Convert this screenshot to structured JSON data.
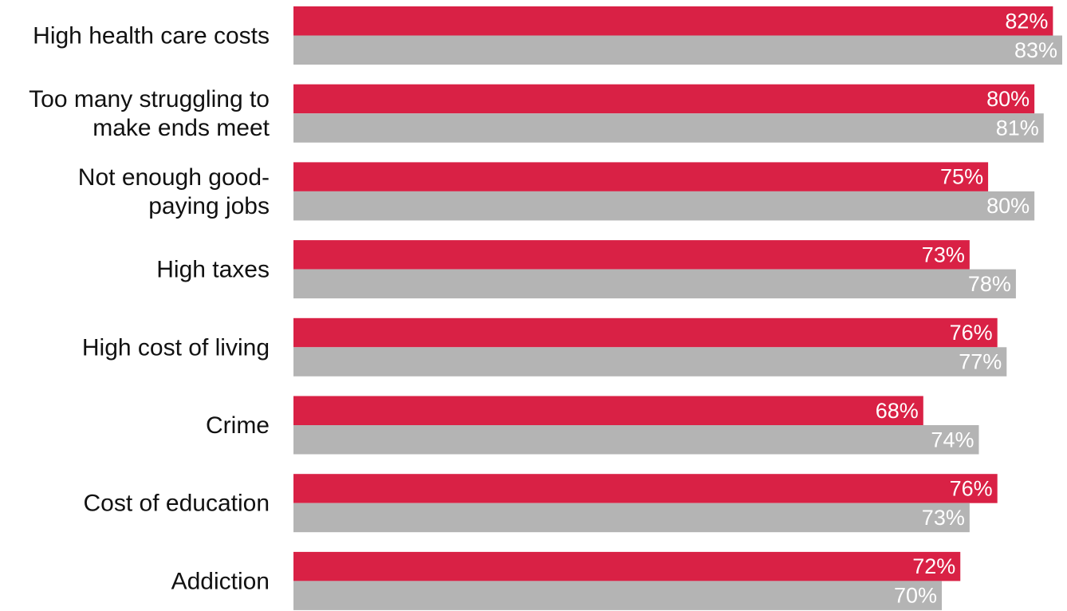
{
  "chart_data": {
    "type": "bar",
    "orientation": "horizontal",
    "categories": [
      [
        "High health care costs"
      ],
      [
        "Too many struggling to",
        "make ends meet"
      ],
      [
        "Not enough good-",
        "paying jobs"
      ],
      [
        "High taxes"
      ],
      [
        "High cost of living"
      ],
      [
        "Crime"
      ],
      [
        "Cost of education"
      ],
      [
        "Addiction"
      ]
    ],
    "series": [
      {
        "color": "#d92145",
        "values": [
          82,
          80,
          75,
          73,
          76,
          68,
          76,
          72
        ],
        "labels": [
          "82%",
          "80%",
          "75%",
          "73%",
          "76%",
          "68%",
          "76%",
          "72%"
        ]
      },
      {
        "color": "#b4b4b4",
        "values": [
          83,
          81,
          80,
          78,
          77,
          74,
          73,
          70
        ],
        "labels": [
          "83%",
          "81%",
          "80%",
          "78%",
          "77%",
          "74%",
          "73%",
          "70%"
        ]
      }
    ],
    "xlim": [
      0,
      83
    ],
    "grid": false,
    "legend": "none"
  }
}
